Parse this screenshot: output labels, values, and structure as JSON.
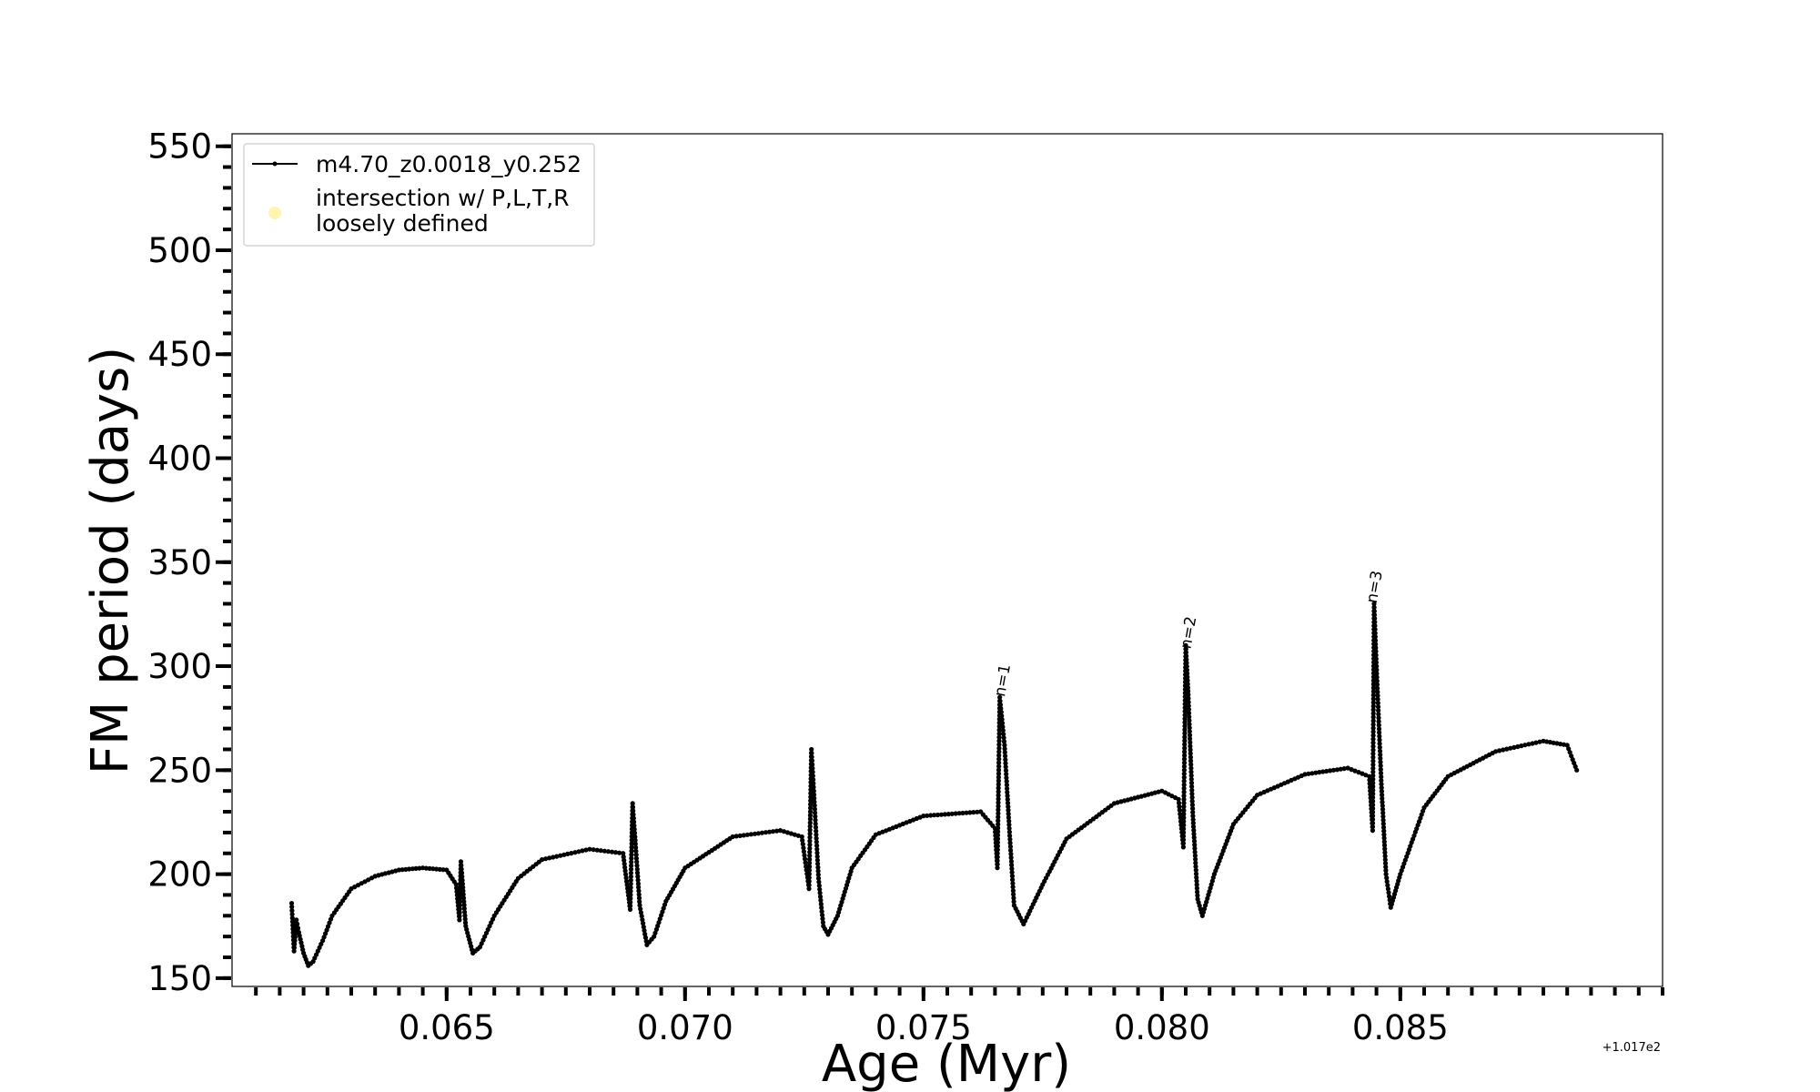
{
  "chart_data": {
    "type": "line",
    "xlabel": "Age (Myr)",
    "ylabel": "FM period (days)",
    "x_offset_text": "+1.017e2",
    "xlim": [
      0.0605,
      0.0905
    ],
    "ylim": [
      146,
      556
    ],
    "x_ticks": [
      0.065,
      0.07,
      0.075,
      0.08,
      0.085
    ],
    "x_tick_labels": [
      "0.065",
      "0.070",
      "0.075",
      "0.080",
      "0.085"
    ],
    "y_ticks": [
      150,
      200,
      250,
      300,
      350,
      400,
      450,
      500,
      550
    ],
    "y_tick_labels": [
      "150",
      "200",
      "250",
      "300",
      "350",
      "400",
      "450",
      "500",
      "550"
    ],
    "grid": false,
    "legend_position": "upper left",
    "line_color": "#000000",
    "intersection_color": "#fff5b0",
    "legend": [
      {
        "label": "m4.70_z0.0018_y0.252",
        "marker": "line-dot"
      },
      {
        "label_lines": [
          "intersection w/ P,L,T,R",
          "loosely defined"
        ],
        "marker": "dot"
      }
    ],
    "annotations": [
      {
        "text": "n=1",
        "x": 0.0767,
        "y": 285
      },
      {
        "text": "n=2",
        "x": 0.0806,
        "y": 308
      },
      {
        "text": "n=3",
        "x": 0.0845,
        "y": 330
      }
    ],
    "series": [
      {
        "name": "m4.70_z0.0018_y0.252",
        "x": [
          0.06175,
          0.0618,
          0.06185,
          0.0619,
          0.062,
          0.0621,
          0.0622,
          0.0624,
          0.0626,
          0.063,
          0.0635,
          0.064,
          0.0645,
          0.065,
          0.0652,
          0.06527,
          0.0653,
          0.06533,
          0.0654,
          0.06555,
          0.0657,
          0.066,
          0.0665,
          0.067,
          0.068,
          0.0687,
          0.06885,
          0.0689,
          0.06895,
          0.06905,
          0.0692,
          0.06935,
          0.0696,
          0.07,
          0.071,
          0.072,
          0.07245,
          0.0726,
          0.07265,
          0.0727,
          0.0728,
          0.0729,
          0.073,
          0.0732,
          0.0735,
          0.074,
          0.075,
          0.0762,
          0.0765,
          0.07655,
          0.0766,
          0.0767,
          0.0768,
          0.0769,
          0.0771,
          0.0775,
          0.078,
          0.079,
          0.08,
          0.08035,
          0.08045,
          0.0805,
          0.08055,
          0.08065,
          0.08075,
          0.08085,
          0.0811,
          0.0815,
          0.082,
          0.083,
          0.0839,
          0.08435,
          0.08442,
          0.08445,
          0.0845,
          0.0846,
          0.0847,
          0.0848,
          0.085,
          0.0855,
          0.086,
          0.087,
          0.088,
          0.0885,
          0.0887
        ],
        "y": [
          186,
          163,
          178,
          172,
          162,
          156,
          158,
          168,
          180,
          193,
          199,
          202,
          203,
          202,
          195,
          178,
          206,
          197,
          175,
          162,
          165,
          180,
          198,
          207,
          212,
          210,
          183,
          234,
          218,
          185,
          166,
          170,
          187,
          203,
          218,
          221,
          218,
          193,
          260,
          240,
          198,
          175,
          171,
          180,
          203,
          219,
          228,
          230,
          222,
          203,
          285,
          262,
          222,
          185,
          176,
          195,
          217,
          234,
          240,
          236,
          213,
          310,
          288,
          228,
          188,
          180,
          200,
          224,
          238,
          248,
          251,
          247,
          221,
          330,
          300,
          245,
          200,
          184,
          200,
          232,
          247,
          259,
          264,
          262,
          250
        ]
      }
    ]
  }
}
